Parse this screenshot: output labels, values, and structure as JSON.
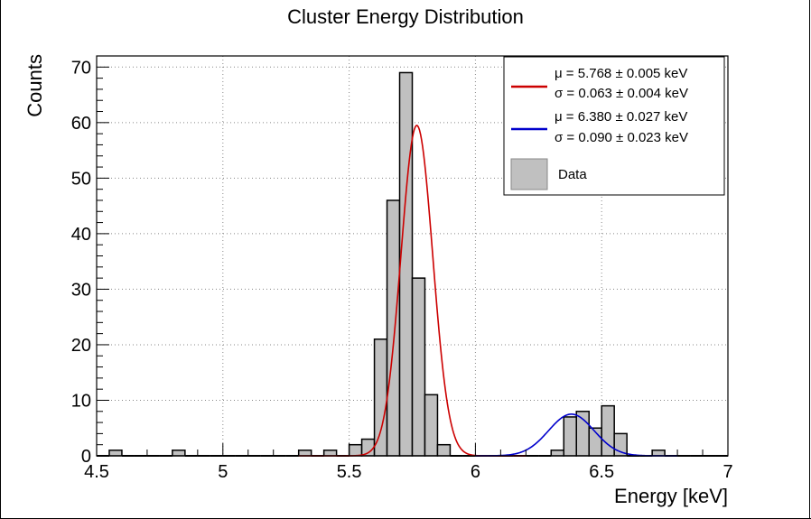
{
  "chart_data": {
    "type": "bar",
    "title": "Cluster Energy Distribution",
    "xlabel": "Energy [keV]",
    "ylabel": "Counts",
    "xlim": [
      4.5,
      7.0
    ],
    "ylim": [
      0,
      72
    ],
    "grid": true,
    "legend_position": "top-right",
    "x_ticks": [
      {
        "value": 4.5,
        "label": "4.5"
      },
      {
        "value": 5.0,
        "label": "5"
      },
      {
        "value": 5.5,
        "label": "5.5"
      },
      {
        "value": 6.0,
        "label": "6"
      },
      {
        "value": 6.5,
        "label": "6.5"
      },
      {
        "value": 7.0,
        "label": "7"
      }
    ],
    "y_ticks": [
      {
        "value": 0,
        "label": "0"
      },
      {
        "value": 10,
        "label": "10"
      },
      {
        "value": 20,
        "label": "20"
      },
      {
        "value": 30,
        "label": "30"
      },
      {
        "value": 40,
        "label": "40"
      },
      {
        "value": 50,
        "label": "50"
      },
      {
        "value": 60,
        "label": "60"
      },
      {
        "value": 70,
        "label": "70"
      }
    ],
    "histogram": {
      "name": "Data",
      "color": "#c0c0c0",
      "bin_start": 4.5,
      "bin_width": 0.05,
      "counts": [
        0,
        1,
        0,
        0,
        0,
        0,
        1,
        0,
        0,
        0,
        0,
        0,
        0,
        0,
        0,
        0,
        1,
        0,
        1,
        0,
        2,
        3,
        21,
        46,
        69,
        32,
        11,
        2,
        0,
        0,
        0,
        0,
        0,
        0,
        0,
        0,
        1,
        7,
        8,
        5,
        9,
        4,
        0,
        0,
        1,
        0,
        0,
        0,
        0,
        0
      ]
    },
    "fits": [
      {
        "color": "#cc0000",
        "amplitude": 59.5,
        "mean": 5.768,
        "sigma": 0.063,
        "range": [
          5.3,
          6.2
        ],
        "label_mu": "μ = 5.768 ± 0.005 keV",
        "label_sigma": "σ = 0.063 ± 0.004 keV"
      },
      {
        "color": "#0000cc",
        "amplitude": 7.5,
        "mean": 6.38,
        "sigma": 0.09,
        "range": [
          6.0,
          6.8
        ],
        "label_mu": "μ = 6.380 ± 0.027 keV",
        "label_sigma": "σ = 0.090 ± 0.023 keV"
      }
    ],
    "legend_data_label": "Data"
  }
}
